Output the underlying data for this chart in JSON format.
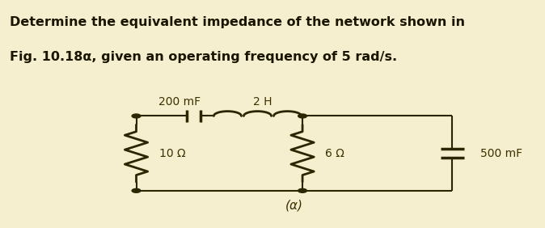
{
  "title_text_line1": "Determine the equivalent impedance of the network shown in",
  "title_text_line2": "Fig. 10.18α, given an operating frequency of 5 rad/s.",
  "title_bg_color": "#8ecfca",
  "circuit_bg_color": "#f5efcf",
  "line_color": "#2a2600",
  "component_color": "#2a2600",
  "title_fontsize": 11.5,
  "label_fontsize": 10,
  "caption_fontsize": 11,
  "fig_width": 6.74,
  "fig_height": 2.82,
  "labels": {
    "cap1": "200 mF",
    "ind1": "2 H",
    "res1": "10 Ω",
    "res2": "6 Ω",
    "cap2": "500 mF",
    "caption": "(α)"
  }
}
